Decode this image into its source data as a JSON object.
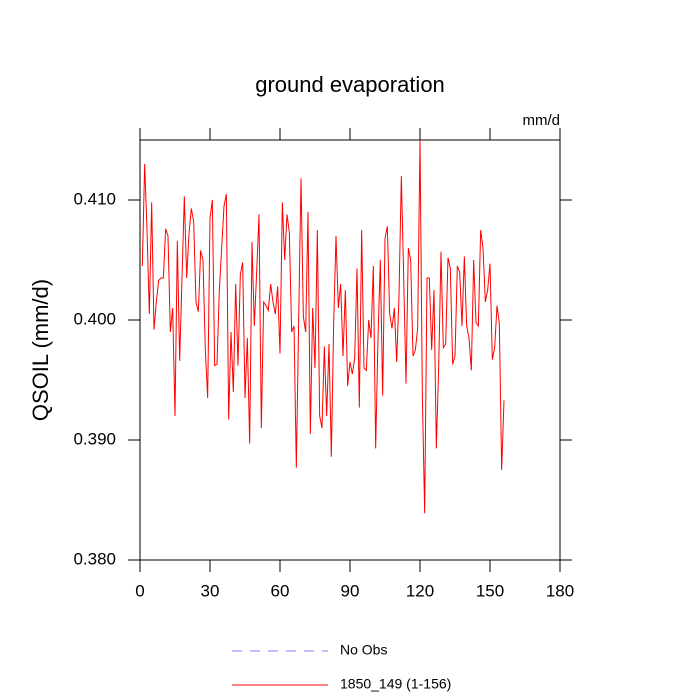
{
  "chart_data": {
    "type": "line",
    "title": "ground evaporation",
    "units": "mm/d",
    "y_label": "QSOIL  (mm/d)",
    "x": [
      1,
      2,
      3,
      4,
      5,
      6,
      7,
      8,
      9,
      10,
      11,
      12,
      13,
      14,
      15,
      16,
      17,
      18,
      19,
      20,
      21,
      22,
      23,
      24,
      25,
      26,
      27,
      28,
      29,
      30,
      31,
      32,
      33,
      34,
      35,
      36,
      37,
      38,
      39,
      40,
      41,
      42,
      43,
      44,
      45,
      46,
      47,
      48,
      49,
      50,
      51,
      52,
      53,
      54,
      55,
      56,
      57,
      58,
      59,
      60,
      61,
      62,
      63,
      64,
      65,
      66,
      67,
      68,
      69,
      70,
      71,
      72,
      73,
      74,
      75,
      76,
      77,
      78,
      79,
      80,
      81,
      82,
      83,
      84,
      85,
      86,
      87,
      88,
      89,
      90,
      91,
      92,
      93,
      94,
      95,
      96,
      97,
      98,
      99,
      100,
      101,
      102,
      103,
      104,
      105,
      106,
      107,
      108,
      109,
      110,
      111,
      112,
      113,
      114,
      115,
      116,
      117,
      118,
      119,
      120,
      121,
      122,
      123,
      124,
      125,
      126,
      127,
      128,
      129,
      130,
      131,
      132,
      133,
      134,
      135,
      136,
      137,
      138,
      139,
      140,
      141,
      142,
      143,
      144,
      145,
      146,
      147,
      148,
      149,
      150,
      151,
      152,
      153,
      154,
      155,
      156
    ],
    "series": [
      {
        "name": "No Obs",
        "color": "#8080ff",
        "dash": "dashed",
        "values": [
          null,
          null,
          null,
          null,
          null,
          null,
          null,
          null,
          null,
          null,
          null,
          null,
          null,
          null,
          null,
          null,
          null,
          null,
          null,
          null,
          null,
          null,
          null,
          null,
          null,
          null,
          null,
          null,
          null,
          null,
          null,
          null,
          null,
          null,
          null,
          null,
          null,
          null,
          null,
          null,
          null,
          null,
          null,
          null,
          null,
          null,
          null,
          null,
          null,
          null,
          null,
          null,
          null,
          null,
          null,
          null,
          null,
          null,
          null,
          null,
          null,
          null,
          null,
          null,
          null,
          null,
          null,
          null,
          null,
          null,
          null,
          null,
          null,
          null,
          null,
          null,
          null,
          null,
          null,
          null,
          null,
          null,
          null,
          null,
          null,
          null,
          null,
          null,
          null,
          null,
          null,
          null,
          null,
          null,
          null,
          null,
          null,
          null,
          null,
          null,
          null,
          null,
          null,
          null,
          null,
          null,
          null,
          null,
          null,
          null,
          null,
          null,
          null,
          null,
          null,
          null,
          null,
          null,
          null,
          null,
          null,
          null,
          null,
          null,
          null,
          null,
          null,
          null,
          null,
          null,
          null,
          null,
          null,
          null,
          null,
          null,
          null,
          null,
          null,
          null,
          null,
          null,
          null,
          null,
          null,
          null,
          null,
          null,
          null,
          null,
          null,
          null,
          null,
          null,
          null,
          null
        ]
      },
      {
        "name": "1850_149 (1-156)",
        "color": "#ff0000",
        "dash": "solid",
        "values": [
          0.4045,
          0.413,
          0.4075,
          0.4005,
          0.4098,
          0.3992,
          0.4015,
          0.4033,
          0.4035,
          0.4035,
          0.4076,
          0.407,
          0.399,
          0.401,
          0.392,
          0.4066,
          0.3966,
          0.4035,
          0.4103,
          0.4035,
          0.4072,
          0.4093,
          0.4082,
          0.4015,
          0.4007,
          0.4058,
          0.405,
          0.3975,
          0.3935,
          0.4085,
          0.41,
          0.3962,
          0.3963,
          0.4025,
          0.406,
          0.4095,
          0.4105,
          0.3917,
          0.399,
          0.394,
          0.403,
          0.3962,
          0.4038,
          0.4048,
          0.3935,
          0.3985,
          0.3897,
          0.4065,
          0.3995,
          0.404,
          0.4088,
          0.391,
          0.4015,
          0.4012,
          0.4008,
          0.403,
          0.4015,
          0.4005,
          0.4028,
          0.3972,
          0.4098,
          0.405,
          0.4088,
          0.4073,
          0.399,
          0.3995,
          0.3877,
          0.4,
          0.4118,
          0.4003,
          0.399,
          0.409,
          0.3905,
          0.401,
          0.396,
          0.4075,
          0.392,
          0.391,
          0.3978,
          0.392,
          0.398,
          0.3886,
          0.3997,
          0.407,
          0.401,
          0.403,
          0.397,
          0.4025,
          0.3945,
          0.3965,
          0.3955,
          0.3968,
          0.4043,
          0.3927,
          0.4075,
          0.396,
          0.3958,
          0.4,
          0.3985,
          0.4045,
          0.3893,
          0.3985,
          0.405,
          0.3937,
          0.4068,
          0.4078,
          0.4005,
          0.3993,
          0.401,
          0.3965,
          0.402,
          0.412,
          0.4037,
          0.3947,
          0.406,
          0.405,
          0.397,
          0.3975,
          0.3993,
          0.415,
          0.3938,
          0.3839,
          0.4035,
          0.4035,
          0.3975,
          0.4025,
          0.3893,
          0.396,
          0.4057,
          0.3977,
          0.398,
          0.4052,
          0.4043,
          0.3963,
          0.397,
          0.4045,
          0.404,
          0.3995,
          0.4053,
          0.3995,
          0.3985,
          0.3958,
          0.405,
          0.3998,
          0.3995,
          0.4075,
          0.406,
          0.4015,
          0.4025,
          0.4047,
          0.3967,
          0.3977,
          0.4012,
          0.3997,
          0.3875,
          0.3933
        ]
      }
    ],
    "xlim": [
      0,
      180
    ],
    "xticks": [
      0,
      30,
      60,
      90,
      120,
      150,
      180
    ],
    "ylim": [
      0.38,
      0.415
    ],
    "yticks": [
      {
        "value": 0.38,
        "label": "0.380"
      },
      {
        "value": 0.39,
        "label": "0.390"
      },
      {
        "value": 0.4,
        "label": "0.400"
      },
      {
        "value": 0.41,
        "label": "0.410"
      }
    ],
    "grid": false
  }
}
